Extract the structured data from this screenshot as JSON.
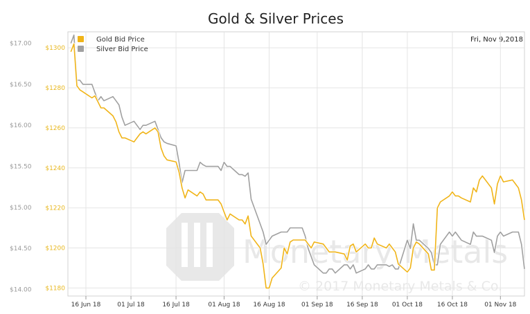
{
  "chart_data": {
    "type": "line",
    "title": "Gold & Silver Prices",
    "date_label": "Fri, Nov 9,2018",
    "legend_position": "top-left",
    "grid": true,
    "x_ticks": [
      "16 Jun 18",
      "01 Jul 18",
      "16 Jul 18",
      "01 Aug 18",
      "16 Aug 18",
      "01 Sep 18",
      "16 Sep 18",
      "01 Oct 18",
      "16 Oct 18",
      "01 Nov 18"
    ],
    "x_range": [
      "2018-06-10",
      "2018-11-09"
    ],
    "y_left": {
      "ticks": [
        "$1300",
        "$1280",
        "$1260",
        "$1240",
        "$1220",
        "$1200",
        "$1180"
      ],
      "range": [
        1176,
        1308
      ],
      "color": "#e8b820"
    },
    "y_right": {
      "ticks": [
        "$17.00",
        "$16.50",
        "$16.00",
        "$15.50",
        "$15.00",
        "$14.50",
        "$14.00"
      ],
      "range": [
        13.92,
        17.14
      ],
      "color": "#999999"
    },
    "series": [
      {
        "name": "Gold Bid Price",
        "color": "#f0b418",
        "axis": "left",
        "x": [
          "2018-06-11",
          "2018-06-12",
          "2018-06-13",
          "2018-06-14",
          "2018-06-15",
          "2018-06-18",
          "2018-06-19",
          "2018-06-20",
          "2018-06-21",
          "2018-06-22",
          "2018-06-25",
          "2018-06-26",
          "2018-06-27",
          "2018-06-28",
          "2018-06-29",
          "2018-07-02",
          "2018-07-03",
          "2018-07-04",
          "2018-07-05",
          "2018-07-06",
          "2018-07-09",
          "2018-07-10",
          "2018-07-11",
          "2018-07-12",
          "2018-07-13",
          "2018-07-16",
          "2018-07-17",
          "2018-07-18",
          "2018-07-19",
          "2018-07-20",
          "2018-07-23",
          "2018-07-24",
          "2018-07-25",
          "2018-07-26",
          "2018-07-27",
          "2018-07-30",
          "2018-07-31",
          "2018-08-01",
          "2018-08-02",
          "2018-08-03",
          "2018-08-06",
          "2018-08-07",
          "2018-08-08",
          "2018-08-09",
          "2018-08-10",
          "2018-08-13",
          "2018-08-14",
          "2018-08-15",
          "2018-08-16",
          "2018-08-17",
          "2018-08-20",
          "2018-08-21",
          "2018-08-22",
          "2018-08-23",
          "2018-08-24",
          "2018-08-27",
          "2018-08-28",
          "2018-08-29",
          "2018-08-30",
          "2018-08-31",
          "2018-09-03",
          "2018-09-04",
          "2018-09-05",
          "2018-09-06",
          "2018-09-07",
          "2018-09-10",
          "2018-09-11",
          "2018-09-12",
          "2018-09-13",
          "2018-09-14",
          "2018-09-17",
          "2018-09-18",
          "2018-09-19",
          "2018-09-20",
          "2018-09-21",
          "2018-09-24",
          "2018-09-25",
          "2018-09-26",
          "2018-09-27",
          "2018-09-28",
          "2018-10-01",
          "2018-10-02",
          "2018-10-03",
          "2018-10-04",
          "2018-10-05",
          "2018-10-08",
          "2018-10-09",
          "2018-10-10",
          "2018-10-11",
          "2018-10-12",
          "2018-10-15",
          "2018-10-16",
          "2018-10-17",
          "2018-10-18",
          "2018-10-19",
          "2018-10-22",
          "2018-10-23",
          "2018-10-24",
          "2018-10-25",
          "2018-10-26",
          "2018-10-29",
          "2018-10-30",
          "2018-10-31",
          "2018-11-01",
          "2018-11-02",
          "2018-11-05",
          "2018-11-06",
          "2018-11-07",
          "2018-11-08",
          "2018-11-09"
        ],
        "values": [
          1298,
          1302,
          1281,
          1279,
          1278,
          1275,
          1276,
          1273,
          1270,
          1270,
          1266,
          1263,
          1258,
          1255,
          1255,
          1253,
          1255,
          1257,
          1258,
          1257,
          1260,
          1258,
          1250,
          1246,
          1244,
          1243,
          1238,
          1230,
          1225,
          1229,
          1226,
          1228,
          1227,
          1224,
          1224,
          1224,
          1222,
          1218,
          1214,
          1217,
          1214,
          1214,
          1212,
          1216,
          1206,
          1200,
          1192,
          1180,
          1180,
          1185,
          1190,
          1200,
          1197,
          1203,
          1204,
          1204,
          1204,
          1202,
          1200,
          1203,
          1202,
          1200,
          1198,
          1198,
          1198,
          1197,
          1194,
          1201,
          1202,
          1198,
          1202,
          1200,
          1200,
          1205,
          1202,
          1200,
          1202,
          1200,
          1198,
          1192,
          1188,
          1190,
          1200,
          1203,
          1202,
          1197,
          1189,
          1189,
          1220,
          1223,
          1226,
          1228,
          1226,
          1226,
          1225,
          1223,
          1230,
          1228,
          1234,
          1236,
          1230,
          1222,
          1232,
          1236,
          1233,
          1234,
          1232,
          1230,
          1224,
          1214
        ]
      },
      {
        "name": "Silver Bid Price",
        "color": "#a0a0a0",
        "axis": "right",
        "x": [
          "2018-06-11",
          "2018-06-12",
          "2018-06-13",
          "2018-06-14",
          "2018-06-15",
          "2018-06-18",
          "2018-06-19",
          "2018-06-20",
          "2018-06-21",
          "2018-06-22",
          "2018-06-25",
          "2018-06-26",
          "2018-06-27",
          "2018-06-28",
          "2018-06-29",
          "2018-07-02",
          "2018-07-03",
          "2018-07-04",
          "2018-07-05",
          "2018-07-06",
          "2018-07-09",
          "2018-07-10",
          "2018-07-11",
          "2018-07-12",
          "2018-07-13",
          "2018-07-16",
          "2018-07-17",
          "2018-07-18",
          "2018-07-19",
          "2018-07-20",
          "2018-07-23",
          "2018-07-24",
          "2018-07-25",
          "2018-07-26",
          "2018-07-27",
          "2018-07-30",
          "2018-07-31",
          "2018-08-01",
          "2018-08-02",
          "2018-08-03",
          "2018-08-06",
          "2018-08-07",
          "2018-08-08",
          "2018-08-09",
          "2018-08-10",
          "2018-08-13",
          "2018-08-14",
          "2018-08-15",
          "2018-08-16",
          "2018-08-17",
          "2018-08-20",
          "2018-08-21",
          "2018-08-22",
          "2018-08-23",
          "2018-08-24",
          "2018-08-27",
          "2018-08-28",
          "2018-08-29",
          "2018-08-30",
          "2018-08-31",
          "2018-09-03",
          "2018-09-04",
          "2018-09-05",
          "2018-09-06",
          "2018-09-07",
          "2018-09-10",
          "2018-09-11",
          "2018-09-12",
          "2018-09-13",
          "2018-09-14",
          "2018-09-17",
          "2018-09-18",
          "2018-09-19",
          "2018-09-20",
          "2018-09-21",
          "2018-09-24",
          "2018-09-25",
          "2018-09-26",
          "2018-09-27",
          "2018-09-28",
          "2018-10-01",
          "2018-10-02",
          "2018-10-03",
          "2018-10-04",
          "2018-10-05",
          "2018-10-08",
          "2018-10-09",
          "2018-10-10",
          "2018-10-11",
          "2018-10-12",
          "2018-10-15",
          "2018-10-16",
          "2018-10-17",
          "2018-10-18",
          "2018-10-19",
          "2018-10-22",
          "2018-10-23",
          "2018-10-24",
          "2018-10-25",
          "2018-10-26",
          "2018-10-29",
          "2018-10-30",
          "2018-10-31",
          "2018-11-01",
          "2018-11-02",
          "2018-11-05",
          "2018-11-06",
          "2018-11-07",
          "2018-11-08",
          "2018-11-09"
        ],
        "values": [
          17.0,
          17.1,
          16.55,
          16.55,
          16.5,
          16.5,
          16.4,
          16.3,
          16.35,
          16.3,
          16.35,
          16.3,
          16.25,
          16.1,
          16.0,
          16.05,
          16.0,
          15.95,
          16.0,
          16.0,
          16.05,
          15.95,
          15.85,
          15.8,
          15.78,
          15.75,
          15.55,
          15.3,
          15.45,
          15.45,
          15.45,
          15.55,
          15.52,
          15.5,
          15.5,
          15.5,
          15.45,
          15.55,
          15.5,
          15.5,
          15.4,
          15.4,
          15.38,
          15.42,
          15.1,
          14.8,
          14.7,
          14.55,
          14.6,
          14.65,
          14.7,
          14.7,
          14.7,
          14.75,
          14.75,
          14.75,
          14.65,
          14.5,
          14.4,
          14.3,
          14.2,
          14.2,
          14.25,
          14.25,
          14.2,
          14.3,
          14.3,
          14.25,
          14.3,
          14.2,
          14.25,
          14.3,
          14.25,
          14.25,
          14.3,
          14.3,
          14.28,
          14.3,
          14.25,
          14.25,
          14.6,
          14.5,
          14.8,
          14.6,
          14.6,
          14.5,
          14.45,
          14.3,
          14.3,
          14.55,
          14.7,
          14.65,
          14.7,
          14.65,
          14.6,
          14.55,
          14.7,
          14.65,
          14.65,
          14.65,
          14.6,
          14.45,
          14.65,
          14.7,
          14.65,
          14.7,
          14.7,
          14.7,
          14.55,
          14.25
        ]
      }
    ],
    "watermark": "Monetary Metals",
    "copyright": "© 2017 Monetary Metals & Co."
  }
}
